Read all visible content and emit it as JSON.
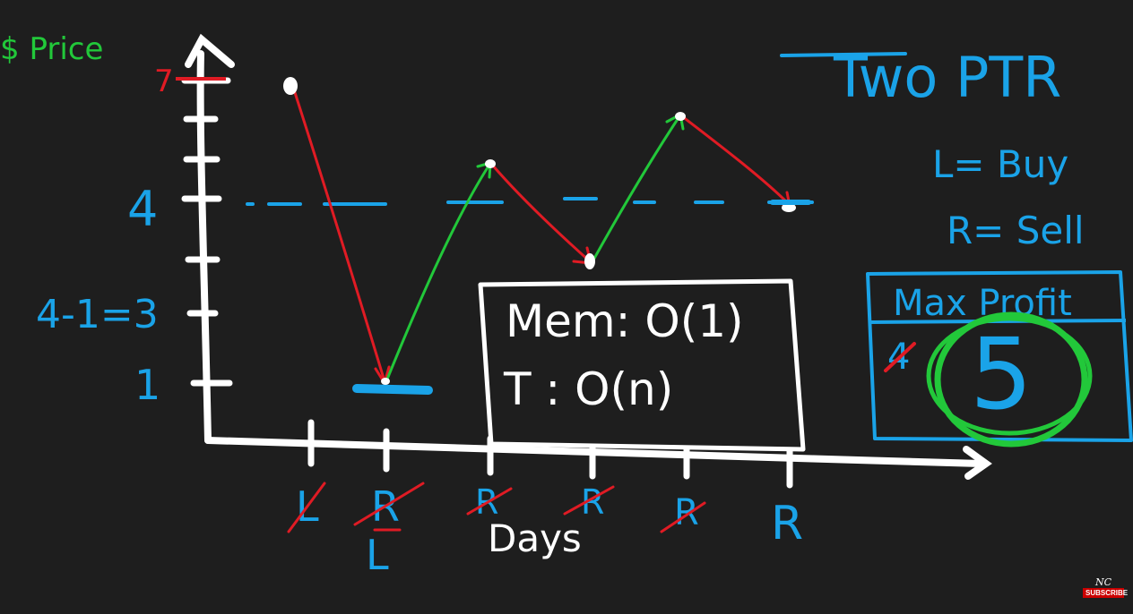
{
  "colors": {
    "background": "#1e1e1e",
    "white": "#ffffff",
    "blue": "#1aa3e8",
    "green": "#22c83a",
    "red": "#e01b24"
  },
  "axis": {
    "y_title": "$ Price",
    "x_title": "Days",
    "y_labels": [
      "7",
      "4",
      "4-1=3",
      "1"
    ]
  },
  "title": "Two PTR",
  "legend": {
    "left": "L= Buy",
    "right": "R= Sell"
  },
  "complexity": {
    "memory": "Mem: O(1)",
    "time": "T : O(n)"
  },
  "max_profit": {
    "header": "Max Profit",
    "old_value": "4",
    "value": "5"
  },
  "day_labels": [
    {
      "text": "L",
      "crossed": true
    },
    {
      "text": "R",
      "crossed": true,
      "below": "L"
    },
    {
      "text": "R",
      "crossed": true
    },
    {
      "text": "R",
      "crossed": true
    },
    {
      "text": "R",
      "crossed": true
    },
    {
      "text": "R",
      "crossed": false
    }
  ],
  "prices": [
    7,
    1,
    5,
    3,
    6,
    4
  ],
  "watermark": {
    "logo": "NC",
    "subscribe": "SUBSCRIBE"
  }
}
